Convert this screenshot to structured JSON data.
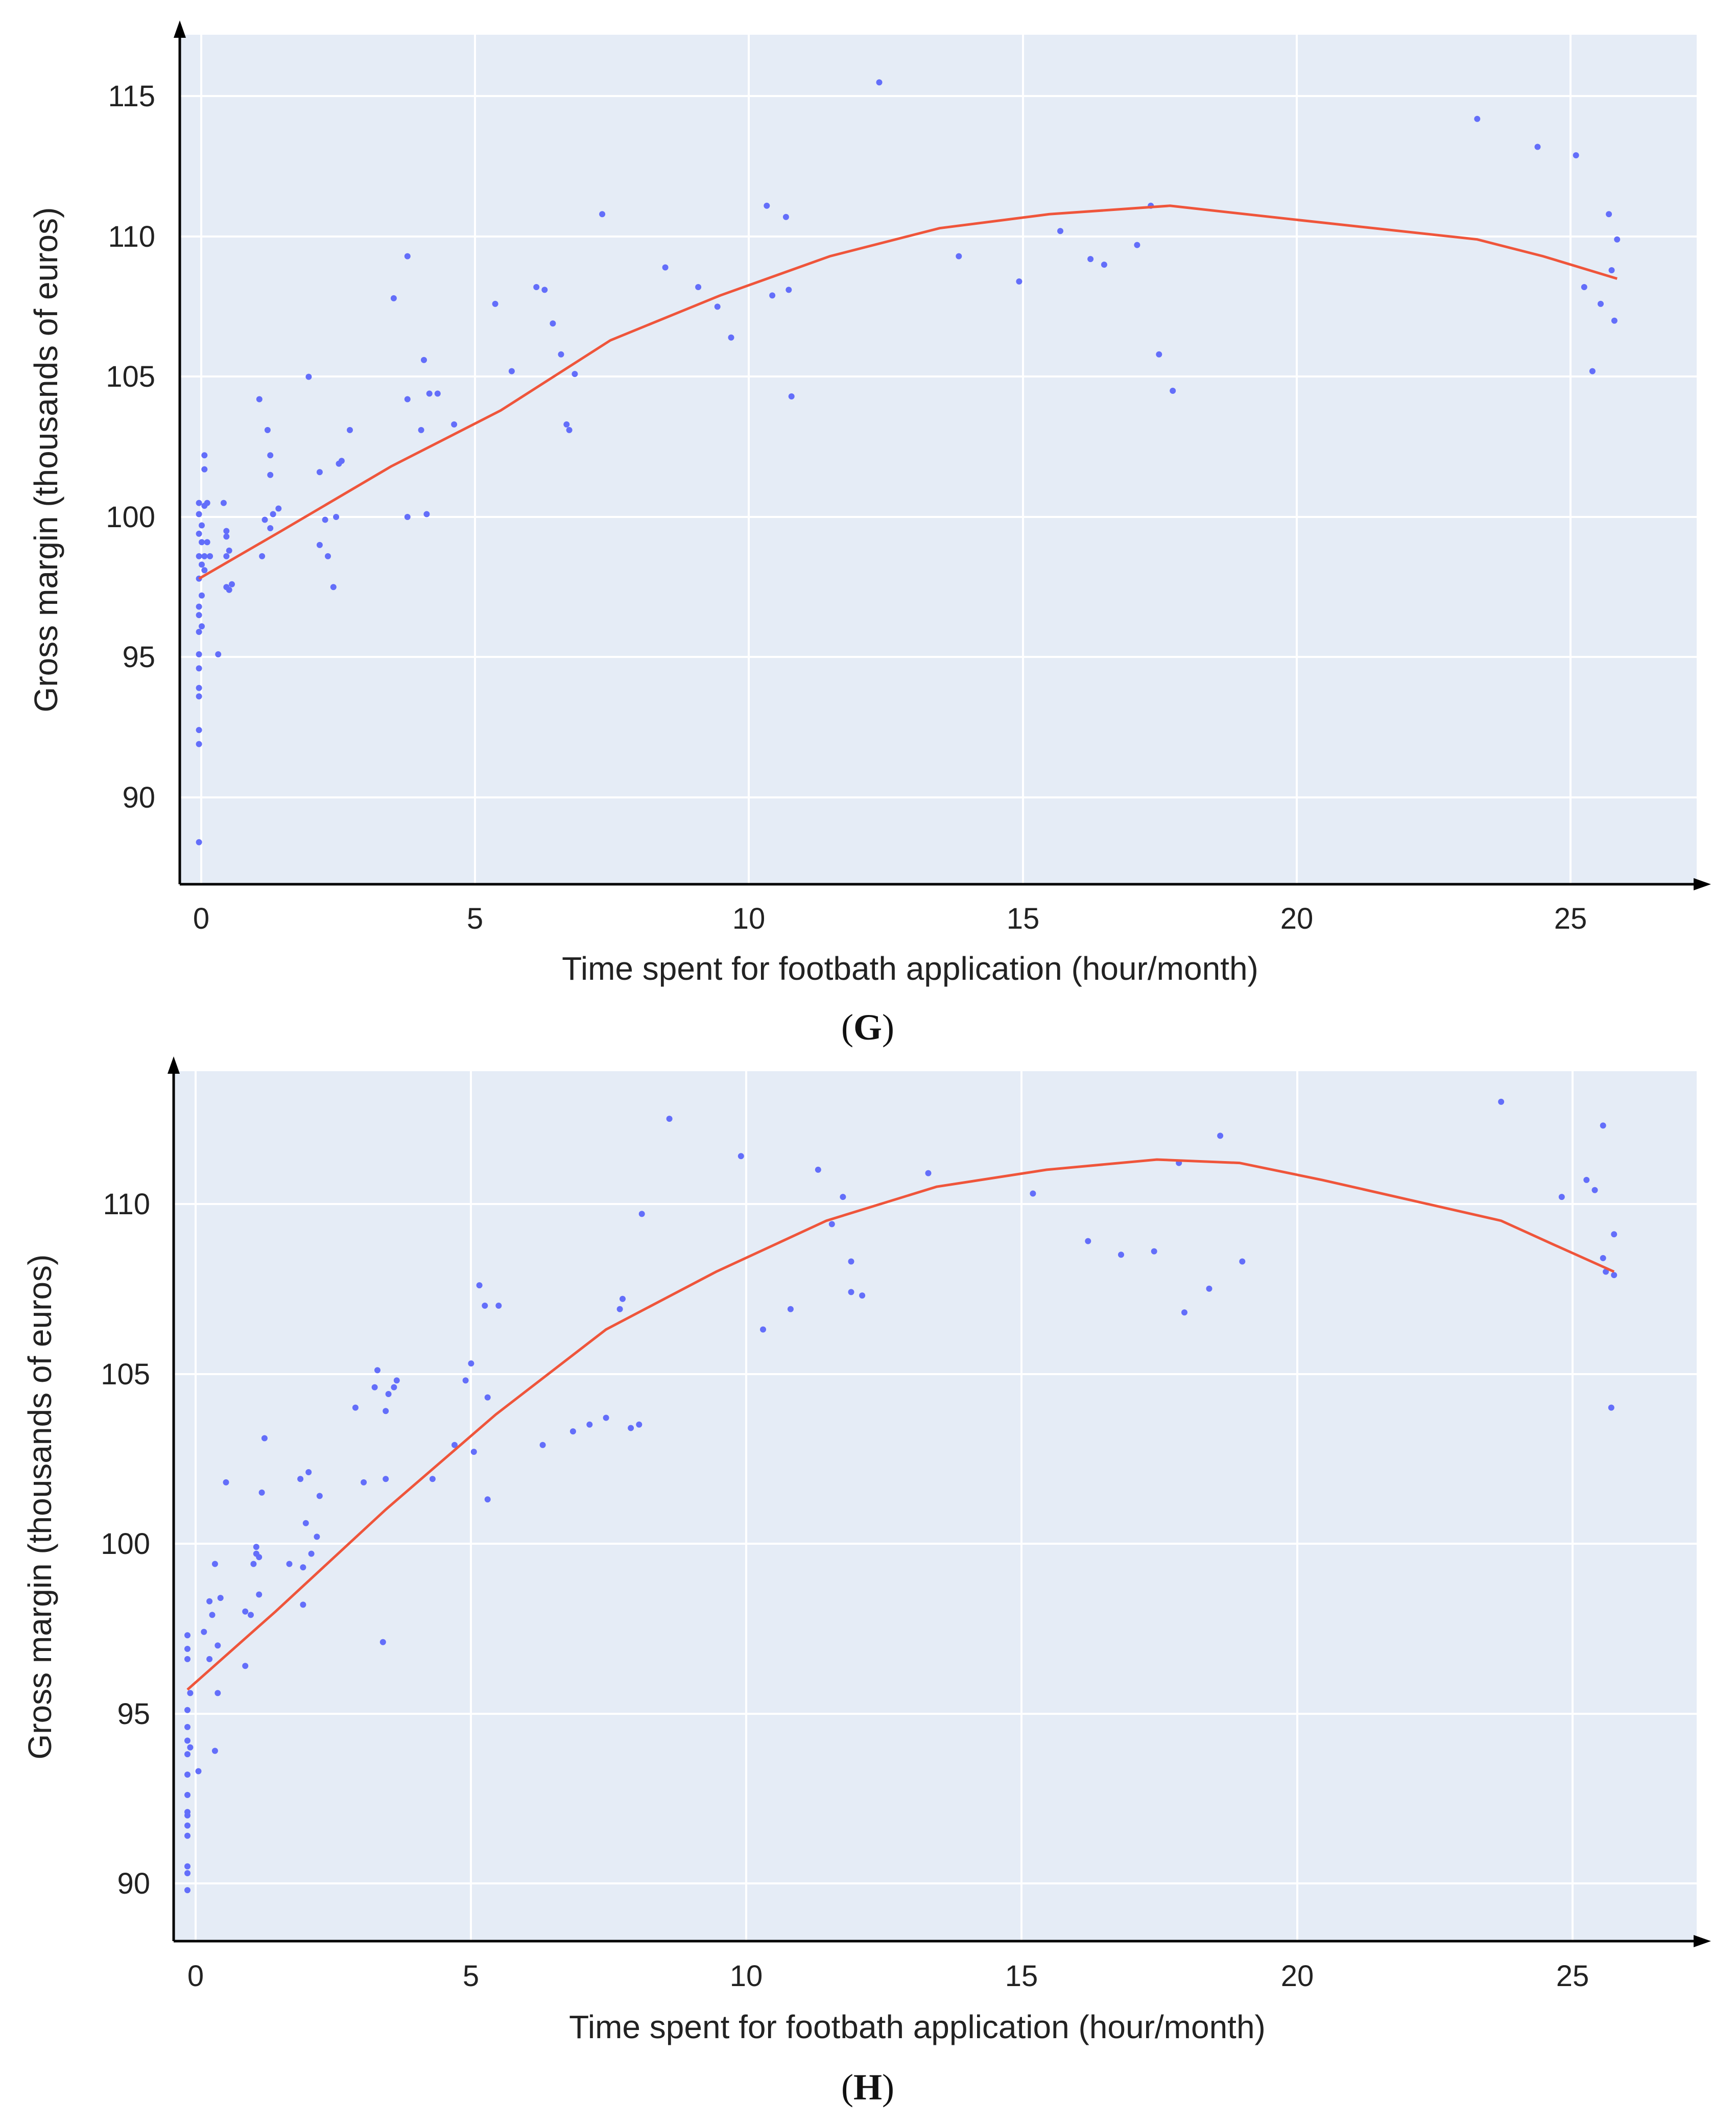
{
  "colors": {
    "plot_bg": "#E5ECF6",
    "grid": "#FFFFFF",
    "axis": "#000000",
    "points": "#636EFA",
    "fit": "#EF553B"
  },
  "chart_data": [
    {
      "type": "scatter",
      "panel": "G",
      "panel_open": "(",
      "panel_close": ")",
      "xlabel": "Time spent for footbath application (hour/month)",
      "ylabel": "Gross margin (thousands of euros)",
      "xlim": [
        -0.35,
        27.3
      ],
      "ylim": [
        86.9,
        117.2
      ],
      "xticks": [
        0,
        5,
        10,
        15,
        20,
        25
      ],
      "yticks": [
        90,
        95,
        100,
        105,
        110,
        115
      ],
      "points": [
        [
          0,
          88.4
        ],
        [
          0,
          91.9
        ],
        [
          0,
          92.4
        ],
        [
          0,
          93.6
        ],
        [
          0,
          93.9
        ],
        [
          0,
          94.6
        ],
        [
          0,
          95.1
        ],
        [
          0,
          95.9
        ],
        [
          0.05,
          96.1
        ],
        [
          0,
          96.5
        ],
        [
          0,
          96.8
        ],
        [
          0.05,
          97.2
        ],
        [
          0,
          97.8
        ],
        [
          0.05,
          98.3
        ],
        [
          0,
          98.6
        ],
        [
          0.1,
          98.6
        ],
        [
          0.05,
          99.1
        ],
        [
          0,
          99.4
        ],
        [
          0.05,
          99.7
        ],
        [
          0,
          100.1
        ],
        [
          0.1,
          100.4
        ],
        [
          0,
          100.5
        ],
        [
          0.15,
          100.5
        ],
        [
          0.1,
          101.7
        ],
        [
          0.1,
          102.2
        ],
        [
          0.1,
          98.1
        ],
        [
          0.2,
          98.6
        ],
        [
          0.15,
          99.1
        ],
        [
          0.35,
          95.1
        ],
        [
          0.45,
          100.5
        ],
        [
          0.5,
          99.5
        ],
        [
          0.5,
          99.3
        ],
        [
          0.5,
          98.6
        ],
        [
          0.55,
          98.8
        ],
        [
          0.5,
          97.5
        ],
        [
          0.55,
          97.4
        ],
        [
          0.6,
          97.6
        ],
        [
          1.1,
          104.2
        ],
        [
          1.15,
          98.6
        ],
        [
          1.2,
          99.9
        ],
        [
          1.25,
          103.1
        ],
        [
          1.3,
          102.2
        ],
        [
          1.3,
          101.5
        ],
        [
          1.3,
          99.6
        ],
        [
          1.35,
          100.1
        ],
        [
          1.45,
          100.3
        ],
        [
          2.0,
          105.0
        ],
        [
          2.2,
          101.6
        ],
        [
          2.2,
          99.0
        ],
        [
          2.3,
          99.9
        ],
        [
          2.35,
          98.6
        ],
        [
          2.45,
          97.5
        ],
        [
          2.5,
          100.0
        ],
        [
          2.55,
          101.9
        ],
        [
          2.6,
          102.0
        ],
        [
          2.75,
          103.1
        ],
        [
          3.55,
          107.8
        ],
        [
          3.8,
          109.3
        ],
        [
          3.8,
          104.2
        ],
        [
          3.8,
          100.0
        ],
        [
          4.05,
          103.1
        ],
        [
          4.1,
          105.6
        ],
        [
          4.15,
          100.1
        ],
        [
          4.2,
          104.4
        ],
        [
          4.35,
          104.4
        ],
        [
          4.65,
          103.3
        ],
        [
          5.4,
          107.6
        ],
        [
          5.7,
          105.2
        ],
        [
          6.15,
          108.2
        ],
        [
          6.3,
          108.1
        ],
        [
          6.45,
          106.9
        ],
        [
          6.6,
          105.8
        ],
        [
          6.7,
          103.3
        ],
        [
          6.75,
          103.1
        ],
        [
          6.85,
          105.1
        ],
        [
          7.35,
          110.8
        ],
        [
          8.5,
          108.9
        ],
        [
          9.1,
          108.2
        ],
        [
          9.45,
          107.5
        ],
        [
          9.7,
          106.4
        ],
        [
          10.35,
          111.1
        ],
        [
          10.45,
          107.9
        ],
        [
          10.7,
          110.7
        ],
        [
          10.75,
          108.1
        ],
        [
          10.8,
          104.3
        ],
        [
          12.4,
          115.5
        ],
        [
          13.85,
          109.3
        ],
        [
          14.95,
          108.4
        ],
        [
          15.7,
          110.2
        ],
        [
          16.25,
          109.2
        ],
        [
          16.5,
          109.0
        ],
        [
          17.1,
          109.7
        ],
        [
          17.35,
          111.1
        ],
        [
          17.5,
          105.8
        ],
        [
          17.75,
          104.5
        ],
        [
          23.3,
          114.2
        ],
        [
          24.4,
          113.2
        ],
        [
          25.1,
          112.9
        ],
        [
          25.25,
          108.2
        ],
        [
          25.4,
          105.2
        ],
        [
          25.55,
          107.6
        ],
        [
          25.7,
          110.8
        ],
        [
          25.75,
          108.8
        ],
        [
          25.8,
          107.0
        ],
        [
          25.85,
          109.9
        ]
      ],
      "fit": [
        [
          0,
          97.8
        ],
        [
          1.5,
          99.5
        ],
        [
          3.5,
          101.8
        ],
        [
          5.5,
          103.8
        ],
        [
          7.5,
          106.3
        ],
        [
          9.5,
          107.9
        ],
        [
          11.5,
          109.3
        ],
        [
          13.5,
          110.3
        ],
        [
          15.5,
          110.8
        ],
        [
          17.7,
          111.1
        ],
        [
          20,
          110.6
        ],
        [
          23.3,
          109.9
        ],
        [
          24.5,
          109.3
        ],
        [
          25.85,
          108.5
        ]
      ]
    },
    {
      "type": "scatter",
      "panel": "H",
      "panel_open": "(",
      "panel_close": ")",
      "xlabel": "Time spent for footbath application (hour/month)",
      "ylabel": "Gross margin (thousands of euros)",
      "xlim": [
        -0.35,
        27.3
      ],
      "ylim": [
        88.3,
        113.9
      ],
      "xticks": [
        0,
        5,
        10,
        15,
        20,
        25
      ],
      "yticks": [
        90,
        95,
        100,
        105,
        110
      ],
      "points": [
        [
          -0.1,
          89.8
        ],
        [
          -0.1,
          90.3
        ],
        [
          -0.1,
          90.5
        ],
        [
          -0.1,
          91.4
        ],
        [
          -0.1,
          91.7
        ],
        [
          -0.1,
          92.0
        ],
        [
          -0.1,
          92.1
        ],
        [
          -0.1,
          92.6
        ],
        [
          -0.1,
          93.2
        ],
        [
          -0.1,
          93.8
        ],
        [
          -0.05,
          94.0
        ],
        [
          -0.1,
          94.2
        ],
        [
          -0.1,
          94.6
        ],
        [
          -0.1,
          95.1
        ],
        [
          -0.05,
          95.6
        ],
        [
          -0.1,
          96.6
        ],
        [
          -0.1,
          96.9
        ],
        [
          -0.1,
          97.3
        ],
        [
          0.1,
          93.3
        ],
        [
          0.2,
          97.4
        ],
        [
          0.3,
          96.6
        ],
        [
          0.3,
          98.3
        ],
        [
          0.35,
          97.9
        ],
        [
          0.4,
          99.4
        ],
        [
          0.4,
          93.9
        ],
        [
          0.45,
          95.6
        ],
        [
          0.45,
          97.0
        ],
        [
          0.5,
          98.4
        ],
        [
          0.6,
          101.8
        ],
        [
          0.95,
          98.0
        ],
        [
          0.95,
          96.4
        ],
        [
          1.05,
          97.9
        ],
        [
          1.1,
          99.4
        ],
        [
          1.15,
          99.7
        ],
        [
          1.15,
          99.9
        ],
        [
          1.2,
          99.6
        ],
        [
          1.2,
          98.5
        ],
        [
          1.25,
          101.5
        ],
        [
          1.3,
          103.1
        ],
        [
          1.75,
          99.4
        ],
        [
          1.95,
          101.9
        ],
        [
          2.0,
          98.2
        ],
        [
          2.0,
          99.3
        ],
        [
          2.05,
          100.6
        ],
        [
          2.1,
          102.1
        ],
        [
          2.15,
          99.7
        ],
        [
          2.25,
          100.2
        ],
        [
          2.3,
          101.4
        ],
        [
          2.95,
          104.0
        ],
        [
          3.1,
          101.8
        ],
        [
          3.3,
          104.6
        ],
        [
          3.35,
          105.1
        ],
        [
          3.45,
          97.1
        ],
        [
          3.5,
          101.9
        ],
        [
          3.5,
          103.9
        ],
        [
          3.55,
          104.4
        ],
        [
          3.65,
          104.6
        ],
        [
          3.7,
          104.8
        ],
        [
          4.35,
          101.9
        ],
        [
          4.75,
          102.9
        ],
        [
          4.95,
          104.8
        ],
        [
          5.05,
          105.3
        ],
        [
          5.1,
          102.7
        ],
        [
          5.2,
          107.6
        ],
        [
          5.3,
          107.0
        ],
        [
          5.35,
          101.3
        ],
        [
          5.35,
          104.3
        ],
        [
          5.55,
          107.0
        ],
        [
          6.35,
          102.9
        ],
        [
          6.9,
          103.3
        ],
        [
          7.2,
          103.5
        ],
        [
          7.5,
          103.7
        ],
        [
          7.75,
          106.9
        ],
        [
          7.8,
          107.2
        ],
        [
          7.95,
          103.4
        ],
        [
          8.1,
          103.5
        ],
        [
          8.15,
          109.7
        ],
        [
          8.65,
          112.5
        ],
        [
          9.95,
          111.4
        ],
        [
          10.35,
          106.3
        ],
        [
          10.85,
          106.9
        ],
        [
          11.35,
          111.0
        ],
        [
          11.6,
          109.4
        ],
        [
          11.8,
          110.2
        ],
        [
          11.95,
          108.3
        ],
        [
          11.95,
          107.4
        ],
        [
          12.15,
          107.3
        ],
        [
          13.35,
          110.9
        ],
        [
          15.25,
          110.3
        ],
        [
          16.25,
          108.9
        ],
        [
          16.85,
          108.5
        ],
        [
          17.45,
          108.6
        ],
        [
          17.9,
          111.2
        ],
        [
          18.0,
          106.8
        ],
        [
          18.45,
          107.5
        ],
        [
          18.65,
          112.0
        ],
        [
          19.05,
          108.3
        ],
        [
          23.75,
          113.0
        ],
        [
          24.85,
          110.2
        ],
        [
          25.3,
          110.7
        ],
        [
          25.45,
          110.4
        ],
        [
          25.6,
          112.3
        ],
        [
          25.6,
          108.4
        ],
        [
          25.65,
          108.0
        ],
        [
          25.75,
          104.0
        ],
        [
          25.8,
          107.9
        ],
        [
          25.8,
          109.1
        ]
      ],
      "fit": [
        [
          -0.1,
          95.7
        ],
        [
          1.5,
          98.0
        ],
        [
          3.5,
          101.0
        ],
        [
          5.5,
          103.8
        ],
        [
          7.5,
          106.3
        ],
        [
          9.5,
          108.0
        ],
        [
          11.5,
          109.5
        ],
        [
          13.5,
          110.5
        ],
        [
          15.5,
          111.0
        ],
        [
          17.5,
          111.3
        ],
        [
          19,
          111.2
        ],
        [
          20.5,
          110.7
        ],
        [
          23.75,
          109.5
        ],
        [
          24.7,
          108.8
        ],
        [
          25.8,
          108.0
        ]
      ]
    }
  ]
}
